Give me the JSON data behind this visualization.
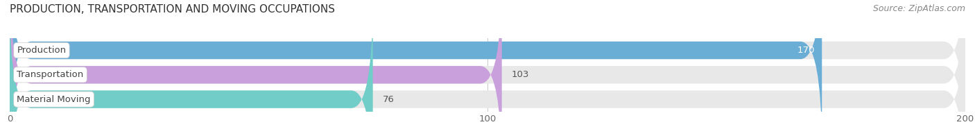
{
  "title": "PRODUCTION, TRANSPORTATION AND MOVING OCCUPATIONS",
  "source": "Source: ZipAtlas.com",
  "categories": [
    "Production",
    "Transportation",
    "Material Moving"
  ],
  "values": [
    170,
    103,
    76
  ],
  "bar_colors": [
    "#6aaed6",
    "#c9a0dc",
    "#70cdc8"
  ],
  "bar_bg_color": "#e8e8e8",
  "xlim": [
    0,
    200
  ],
  "xticks": [
    0,
    100,
    200
  ],
  "title_fontsize": 11,
  "label_fontsize": 9.5,
  "tick_fontsize": 9.5,
  "source_fontsize": 9,
  "bg_color": "#ffffff",
  "bar_height": 0.72,
  "bar_gap": 1.0
}
